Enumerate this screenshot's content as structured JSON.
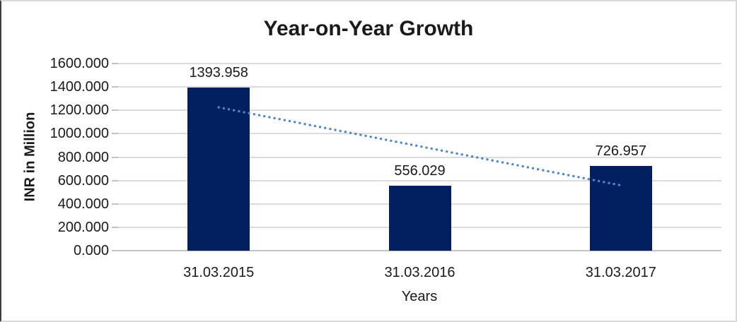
{
  "chart_data": {
    "type": "bar",
    "title": "Year-on-Year Growth",
    "xlabel": "Years",
    "ylabel": "INR in Million",
    "categories": [
      "31.03.2015",
      "31.03.2016",
      "31.03.2017"
    ],
    "values": [
      1393.958,
      556.029,
      726.957
    ],
    "value_labels": [
      "1393.958",
      "556.029",
      "726.957"
    ],
    "ylim": [
      0,
      1600
    ],
    "ytick_step": 200,
    "ytick_labels": [
      "0.000",
      "200.000",
      "400.000",
      "600.000",
      "800.000",
      "1000.000",
      "1200.000",
      "1400.000",
      "1600.000"
    ],
    "grid": true,
    "legend": false,
    "bar_color": "#022060",
    "trendline": {
      "type": "linear",
      "style": "dotted",
      "color": "#4e86c8",
      "start_value": 1225.8,
      "end_value": 558.8
    },
    "colors": {
      "grid": "#dcdcdc",
      "axis_line": "#c3c3c3",
      "tick": "#c3c3c3",
      "text": "#262626"
    }
  }
}
